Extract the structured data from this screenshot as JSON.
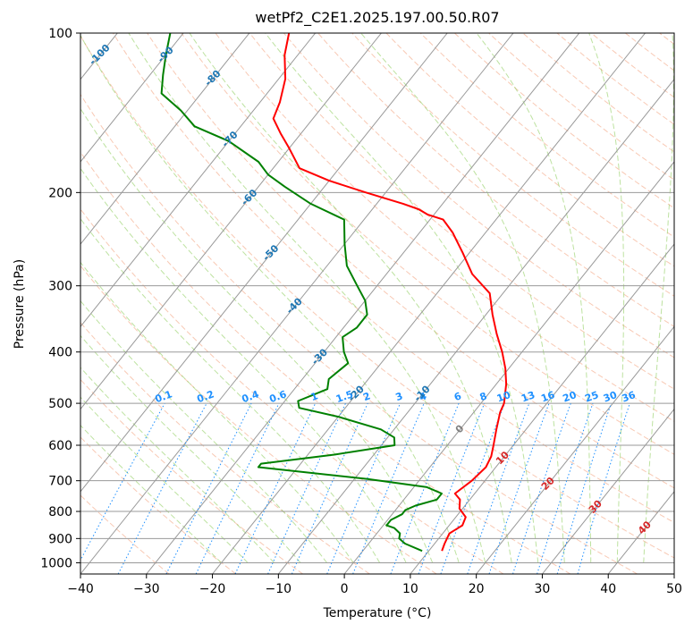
{
  "chart_data": {
    "type": "skew-t",
    "title": "wetPf2_C2E1.2025.197.00.50.R07",
    "xlabel": "Temperature (°C)",
    "ylabel": "Pressure (hPa)",
    "xlim": [
      -40,
      50
    ],
    "ylim": [
      1050,
      100
    ],
    "x_ticks": [
      -40,
      -30,
      -20,
      -10,
      0,
      10,
      20,
      30,
      40,
      50
    ],
    "y_ticks": [
      100,
      200,
      300,
      400,
      500,
      600,
      700,
      800,
      900,
      1000
    ],
    "grid": true,
    "colors": {
      "temperature": "#ff0000",
      "dewpoint": "#008000",
      "isotherm": "#999999",
      "dry_adiabat": "#f4a582",
      "moist_adiabat": "#91cf60",
      "mixing_ratio": "#1e90ff",
      "isotherm_label": "#1f77b4",
      "positive_label": "#d62728",
      "zero_label": "#808080"
    },
    "series": [
      {
        "role": "temperature",
        "points": [
          [
            12,
            950
          ],
          [
            11.5,
            920
          ],
          [
            11,
            880
          ],
          [
            12,
            850
          ],
          [
            11.5,
            820
          ],
          [
            9.5,
            790
          ],
          [
            8.5,
            760
          ],
          [
            7,
            740
          ],
          [
            8,
            700
          ],
          [
            8.5,
            660
          ],
          [
            8,
            630
          ],
          [
            7,
            600
          ],
          [
            5.5,
            560
          ],
          [
            4,
            520
          ],
          [
            3.5,
            500
          ],
          [
            1.5,
            460
          ],
          [
            -0.5,
            430
          ],
          [
            -3,
            400
          ],
          [
            -6,
            370
          ],
          [
            -9,
            340
          ],
          [
            -12,
            310
          ],
          [
            -17,
            285
          ],
          [
            -21,
            260
          ],
          [
            -25,
            238
          ],
          [
            -28,
            225
          ],
          [
            -31,
            220
          ],
          [
            -33,
            215
          ],
          [
            -36,
            210
          ],
          [
            -43,
            200
          ],
          [
            -50,
            190
          ],
          [
            -56,
            180
          ],
          [
            -60,
            165
          ],
          [
            -63,
            155
          ],
          [
            -66,
            145
          ],
          [
            -67,
            135
          ],
          [
            -69,
            122
          ],
          [
            -72,
            110
          ],
          [
            -74,
            100
          ]
        ]
      },
      {
        "role": "dewpoint",
        "points": [
          [
            9,
            950
          ],
          [
            5.5,
            920
          ],
          [
            4,
            900
          ],
          [
            3.5,
            880
          ],
          [
            2,
            860
          ],
          [
            0.5,
            850
          ],
          [
            0.5,
            830
          ],
          [
            1.5,
            810
          ],
          [
            1.5,
            795
          ],
          [
            2.5,
            780
          ],
          [
            5,
            760
          ],
          [
            5,
            740
          ],
          [
            2,
            720
          ],
          [
            -8,
            695
          ],
          [
            -26,
            660
          ],
          [
            -26,
            650
          ],
          [
            -16,
            625
          ],
          [
            -8,
            600
          ],
          [
            -9,
            580
          ],
          [
            -12,
            560
          ],
          [
            -20,
            530
          ],
          [
            -27,
            510
          ],
          [
            -28,
            495
          ],
          [
            -25,
            470
          ],
          [
            -26,
            450
          ],
          [
            -25,
            420
          ],
          [
            -27,
            400
          ],
          [
            -29,
            375
          ],
          [
            -28,
            360
          ],
          [
            -28,
            340
          ],
          [
            -30,
            320
          ],
          [
            -33,
            300
          ],
          [
            -37,
            275
          ],
          [
            -40,
            250
          ],
          [
            -43,
            225
          ],
          [
            -50,
            210
          ],
          [
            -56,
            195
          ],
          [
            -60,
            185
          ],
          [
            -63,
            175
          ],
          [
            -70,
            160
          ],
          [
            -77,
            150
          ],
          [
            -81,
            140
          ],
          [
            -86,
            130
          ],
          [
            -88,
            120
          ],
          [
            -90,
            110
          ],
          [
            -92,
            100
          ]
        ]
      }
    ],
    "isotherm_labels": [
      "-100",
      "-90",
      "-80",
      "-70",
      "-60",
      "-50",
      "-40",
      "-30",
      "-20",
      "-10",
      "0",
      "10",
      "20",
      "30",
      "40"
    ],
    "mixing_ratio_labels": [
      "0.1",
      "0.2",
      "0.4",
      "0.6",
      "1",
      "1.5",
      "2",
      "3",
      "4",
      "6",
      "8",
      "10",
      "13",
      "16",
      "20",
      "25",
      "30",
      "36"
    ]
  }
}
